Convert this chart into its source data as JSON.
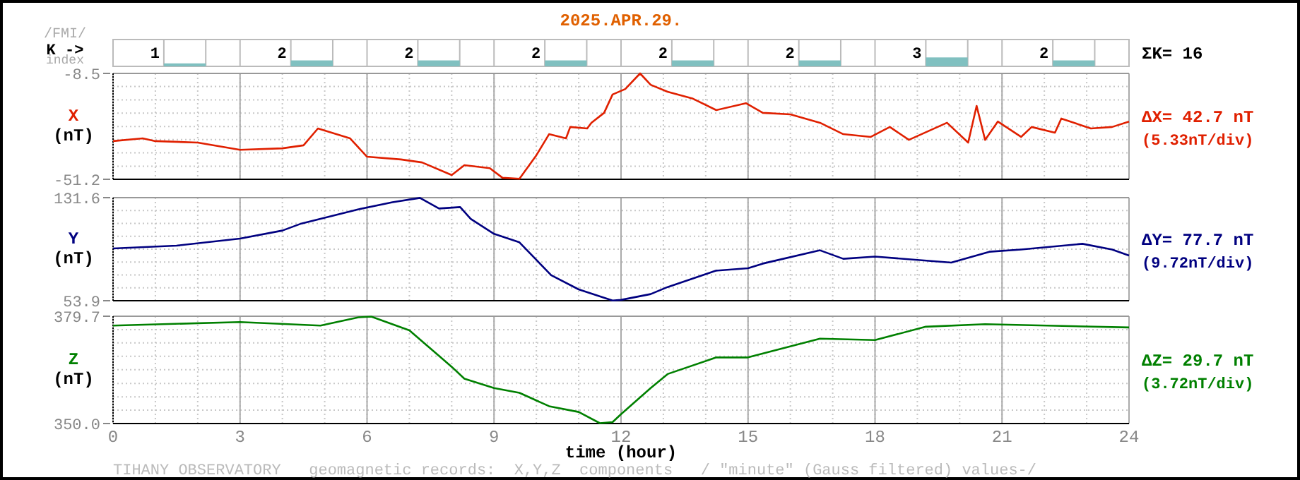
{
  "chart_data": [
    {
      "type": "bar",
      "title": "2025.APR.29.",
      "ylabel": "K ->",
      "annotations": [
        "/FMI/",
        "index",
        "ΣK= 16"
      ],
      "categories": [
        null,
        null,
        null,
        null,
        null,
        null,
        null,
        null
      ],
      "values": [
        1,
        2,
        2,
        2,
        2,
        2,
        3,
        2
      ],
      "color": "#80c0c0",
      "ylim": [
        0,
        9
      ],
      "data_labels": true,
      "tick_labels": false
    },
    {
      "type": "line",
      "ylabel": "X",
      "annotations": [
        "(nT)",
        "ΔX= 42.7 nT",
        "(5.33nT/div)"
      ],
      "xlim": [
        0,
        24
      ],
      "xticks": [
        0,
        3,
        6,
        9,
        12,
        15,
        18,
        21,
        24
      ],
      "ylim": [
        -51.2,
        -8.5
      ],
      "yticks": [
        -8.5,
        {
          "value": -13.8,
          "label": null
        },
        {
          "value": -19.2,
          "label": null
        },
        {
          "value": -24.5,
          "label": null
        },
        {
          "value": -29.9,
          "label": null
        },
        {
          "value": -35.2,
          "label": null
        },
        {
          "value": -40.5,
          "label": null
        },
        {
          "value": -45.9,
          "label": null
        },
        -51.2
      ],
      "grid": true,
      "tick_labels": "y",
      "series": [
        {
          "color": "#e02000",
          "x": [
            0,
            0.7,
            1,
            2,
            3,
            4,
            4.5,
            4.84,
            5.6,
            6.0,
            6.8,
            7.3,
            8.0,
            8.3,
            8.9,
            9.2,
            9.6,
            10.0,
            10.3,
            10.7,
            10.8,
            11.2,
            11.3,
            11.6,
            11.8,
            12.1,
            12.45,
            12.7,
            13.1,
            13.7,
            14.25,
            14.95,
            15.35,
            16.0,
            16.7,
            17.25,
            17.9,
            18.35,
            18.8,
            19.7,
            20.2,
            20.4,
            20.6,
            20.9,
            21.45,
            21.7,
            22.25,
            22.4,
            23.1,
            23.6,
            24
          ],
          "values": [
            -35.8,
            -34.7,
            -35.8,
            -36.4,
            -39.3,
            -38.7,
            -37.5,
            -30.7,
            -34.7,
            -42.1,
            -43.2,
            -44.4,
            -49.5,
            -45.5,
            -46.7,
            -50.6,
            -51.0,
            -41.5,
            -33.0,
            -34.7,
            -30.1,
            -30.7,
            -28.4,
            -24.4,
            -17.0,
            -14.8,
            -8.5,
            -13.1,
            -15.9,
            -18.7,
            -23.3,
            -20.5,
            -24.4,
            -25.0,
            -28.4,
            -33.0,
            -34.1,
            -30.1,
            -35.3,
            -28.4,
            -36.4,
            -21.6,
            -35.3,
            -27.9,
            -34.1,
            -30.1,
            -32.4,
            -26.7,
            -30.7,
            -30.1,
            -27.9
          ]
        }
      ]
    },
    {
      "type": "line",
      "ylabel": "Y",
      "annotations": [
        "(nT)",
        "ΔY= 77.7 nT",
        "(9.72nT/div)"
      ],
      "xlim": [
        0,
        24
      ],
      "xticks": [
        0,
        3,
        6,
        9,
        12,
        15,
        18,
        21,
        24
      ],
      "ylim": [
        53.9,
        131.6
      ],
      "yticks": [
        131.6,
        {
          "value": 121.9,
          "label": null
        },
        {
          "value": 112.2,
          "label": null
        },
        {
          "value": 102.5,
          "label": null
        },
        {
          "value": 92.8,
          "label": null
        },
        {
          "value": 83.0,
          "label": null
        },
        {
          "value": 73.3,
          "label": null
        },
        {
          "value": 63.6,
          "label": null
        },
        53.9
      ],
      "grid": true,
      "tick_labels": "y",
      "series": [
        {
          "color": "#000080",
          "x": [
            0,
            1.5,
            3,
            4,
            4.45,
            5.8,
            6.6,
            7.25,
            7.7,
            8.2,
            8.45,
            9.0,
            9.6,
            10.35,
            11.0,
            11.8,
            12.0,
            12.7,
            13.1,
            14.25,
            15.0,
            15.35,
            16.7,
            17.25,
            18.0,
            19.8,
            20.7,
            21.45,
            22.9,
            23.6,
            24
          ],
          "values": [
            93.3,
            95.4,
            100.7,
            106.8,
            112.1,
            122.8,
            128.1,
            131.4,
            123.4,
            124.5,
            115.6,
            104.3,
            97.9,
            73.1,
            62.4,
            54.0,
            54.5,
            58.9,
            64.2,
            76.6,
            78.4,
            81.9,
            91.9,
            85.5,
            87.2,
            82.6,
            90.8,
            92.5,
            96.8,
            92.5,
            88.0
          ]
        }
      ]
    },
    {
      "type": "line",
      "ylabel": "Z",
      "xlabel": "time (hour)",
      "annotations": [
        "(nT)",
        "ΔZ= 29.7 nT",
        "(3.72nT/div)",
        "TIHANY OBSERVATORY   geomagnetic records:  X,Y,Z  components   / \"minute\" (Gauss filtered) values-/"
      ],
      "xlim": [
        0,
        24
      ],
      "xticks": [
        0,
        3,
        6,
        9,
        12,
        15,
        18,
        21,
        24
      ],
      "ylim": [
        350.0,
        379.7
      ],
      "yticks": [
        {
          "value": 379.7,
          "label": "379.7"
        },
        {
          "value": 376.0,
          "label": null
        },
        {
          "value": 372.3,
          "label": null
        },
        {
          "value": 368.6,
          "label": null
        },
        {
          "value": 364.9,
          "label": null
        },
        {
          "value": 361.1,
          "label": null
        },
        {
          "value": 357.4,
          "label": null
        },
        {
          "value": 353.7,
          "label": null
        },
        {
          "value": 350.0,
          "label": "350.0"
        }
      ],
      "grid": true,
      "series": [
        {
          "color": "#008000",
          "x": [
            0,
            3,
            4.9,
            5.8,
            6.1,
            7.0,
            8.0,
            8.3,
            9.0,
            9.6,
            10.3,
            11.0,
            11.5,
            11.8,
            12.0,
            12.7,
            13.1,
            14.25,
            15.0,
            16.7,
            18.0,
            19.2,
            20.6,
            24
          ],
          "values": [
            377.1,
            378.1,
            377.1,
            379.4,
            379.6,
            375.8,
            365.7,
            362.4,
            359.8,
            358.5,
            354.8,
            353.2,
            350.1,
            350.4,
            352.6,
            359.8,
            363.7,
            368.3,
            368.3,
            373.5,
            373.1,
            376.8,
            377.5,
            376.6
          ]
        }
      ]
    }
  ]
}
